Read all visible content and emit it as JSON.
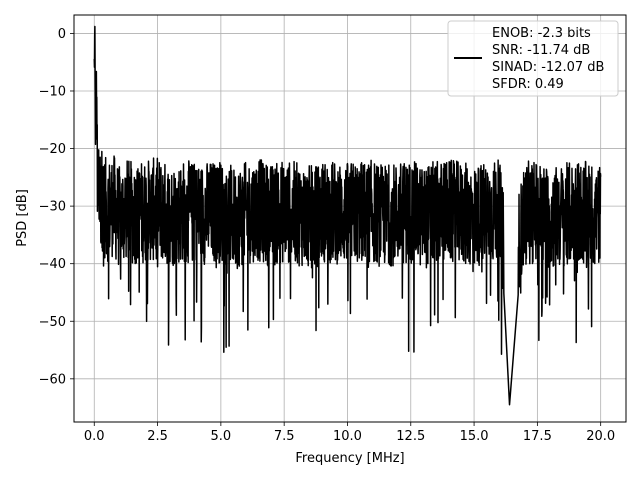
{
  "chart_data": {
    "type": "line",
    "xlabel": "Frequency [MHz]",
    "ylabel": "PSD [dB]",
    "xlim": [
      -0.8,
      21.0
    ],
    "ylim": [
      -67.5,
      3.2
    ],
    "xticks": [
      0.0,
      2.5,
      5.0,
      7.5,
      10.0,
      12.5,
      15.0,
      17.5,
      20.0
    ],
    "xtick_labels": [
      "0.0",
      "2.5",
      "5.0",
      "7.5",
      "10.0",
      "12.5",
      "15.0",
      "17.5",
      "20.0"
    ],
    "yticks": [
      0,
      -10,
      -20,
      -30,
      -40,
      -50,
      -60
    ],
    "ytick_labels": [
      "0",
      "−10",
      "−20",
      "−30",
      "−40",
      "−50",
      "−60"
    ],
    "grid": true,
    "legend_position": "top-right",
    "series": [
      {
        "name": "ENOB: -2.3 bits",
        "color": "#000000",
        "x": [
          0.0,
          0.02,
          0.04,
          0.06,
          0.08,
          0.1,
          0.15,
          0.2,
          0.25,
          0.3,
          0.4,
          0.5,
          0.75,
          1.0,
          1.25,
          1.5,
          2.0,
          2.5,
          3.0,
          3.5,
          4.0,
          5.0,
          5.5,
          6.0,
          6.4,
          7.0,
          7.5,
          8.0,
          8.7,
          9.0,
          10.0,
          11.0,
          11.3,
          12.0,
          12.5,
          13.0,
          13.3,
          14.0,
          15.0,
          15.5,
          16.0,
          16.4,
          17.0,
          17.5,
          18.0,
          18.8,
          19.0,
          20.0
        ],
        "y": [
          -6,
          -1,
          -12,
          -20,
          -8,
          -14,
          -22,
          -18,
          -26,
          -24,
          -28,
          -30,
          -27,
          -33,
          -29,
          -31,
          -30,
          -29,
          -32,
          -30,
          -31,
          -30,
          -33,
          -31,
          -29,
          -32,
          -30,
          -31,
          -33,
          -30,
          -31,
          -30,
          -32,
          -31,
          -30,
          -33,
          -31,
          -30,
          -32,
          -31,
          -30,
          -64.5,
          -31,
          -30,
          -33,
          -31,
          -30,
          -32
        ]
      }
    ],
    "legend": {
      "lines": [
        "ENOB: -2.3 bits",
        "SNR: -11.74 dB",
        "SINAD: -12.07 dB",
        "SFDR: 0.49"
      ]
    }
  }
}
